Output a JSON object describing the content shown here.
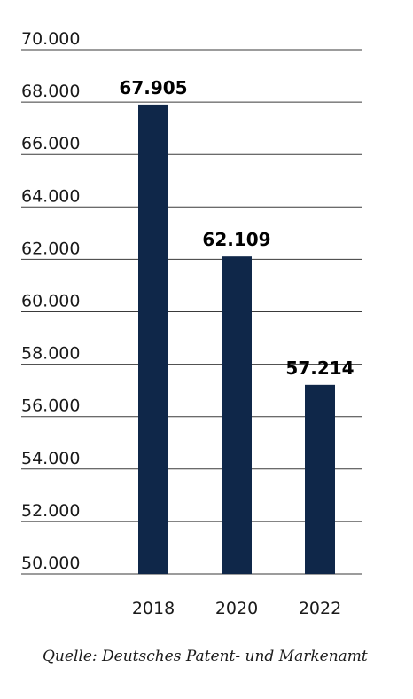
{
  "chart_data": {
    "type": "bar",
    "categories": [
      "2018",
      "2020",
      "2022"
    ],
    "values": [
      67905,
      62109,
      57214
    ],
    "value_labels": [
      "67.905",
      "62.109",
      "57.214"
    ],
    "ylim": [
      50000,
      70000
    ],
    "yticks": [
      50000,
      52000,
      54000,
      56000,
      58000,
      60000,
      62000,
      64000,
      66000,
      68000,
      70000
    ],
    "ytick_labels": [
      "50.000",
      "52.000",
      "54.000",
      "56.000",
      "58.000",
      "60.000",
      "62.000",
      "64.000",
      "66.000",
      "68.000",
      "70.000"
    ],
    "grid": true,
    "bar_color": "#0f2749",
    "grid_color": "#3a3a3a"
  },
  "source": "Quelle: Deutsches Patent- und Markenamt"
}
